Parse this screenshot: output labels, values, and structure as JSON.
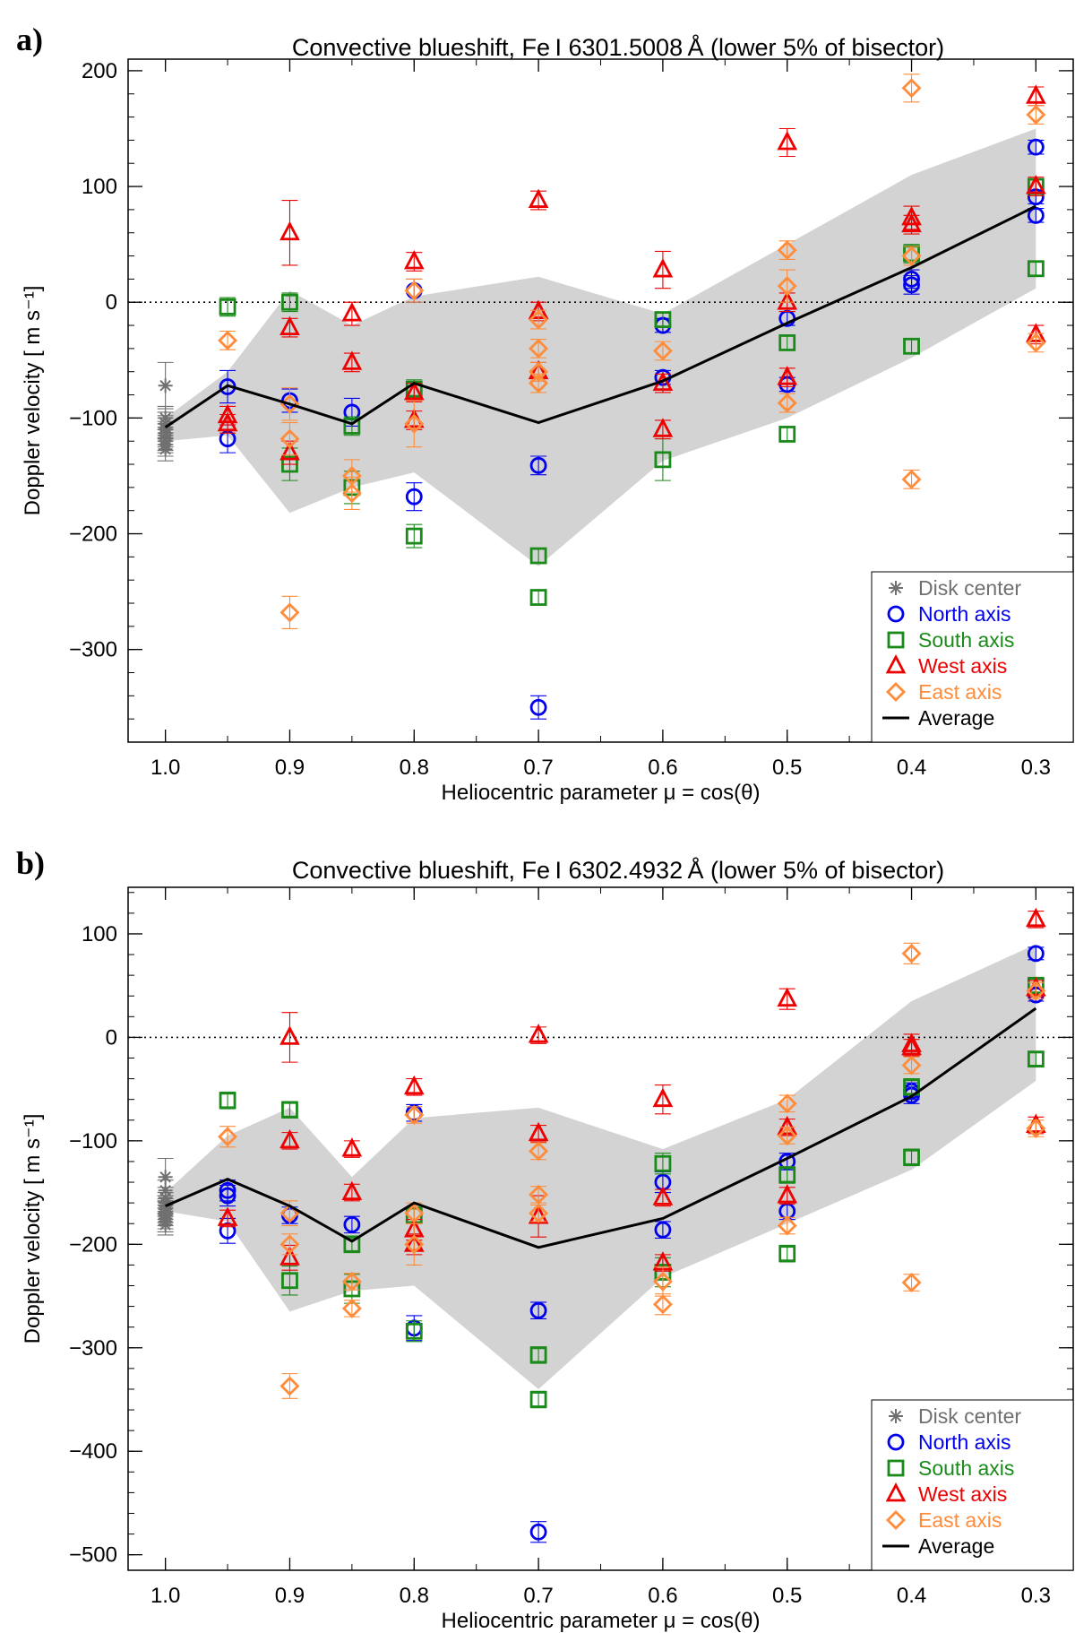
{
  "chart_data": [
    {
      "panel": "a)",
      "type": "scatter",
      "title": "Convective blueshift, Fe I 6301.5008 Å (lower 5% of bisector)",
      "xlabel": "Heliocentric parameter μ = cos(θ)",
      "ylabel": "Doppler velocity [ m s⁻¹]",
      "xlim": [
        1.03,
        0.27
      ],
      "ylim": [
        -380,
        210
      ],
      "xticks": [
        1.0,
        0.9,
        0.8,
        0.7,
        0.6,
        0.5,
        0.4,
        0.3
      ],
      "xtick_labels": [
        "1.0",
        "0.9",
        "0.8",
        "0.7",
        "0.6",
        "0.5",
        "0.4",
        "0.3"
      ],
      "yticks": [
        200,
        100,
        0,
        -100,
        -200,
        -300
      ],
      "ytick_labels": [
        "200",
        "100",
        "0",
        "−100",
        "−200",
        "−300"
      ],
      "zero_line": true,
      "legend_position": "bottom-right",
      "band": {
        "x": [
          1.0,
          0.95,
          0.9,
          0.85,
          0.8,
          0.7,
          0.6,
          0.5,
          0.4,
          0.3
        ],
        "upper": [
          -100,
          -60,
          10,
          -20,
          5,
          22,
          -10,
          50,
          110,
          150
        ],
        "lower": [
          -120,
          -115,
          -182,
          -160,
          -147,
          -228,
          -137,
          -100,
          -48,
          12
        ]
      },
      "series": [
        {
          "name": "Disk center",
          "marker": "asterisk",
          "color": "#707070",
          "x": [
            1.0,
            1.0,
            1.0,
            1.0,
            1.0,
            1.0,
            1.0,
            1.0,
            1.0,
            1.0,
            1.0
          ],
          "y": [
            -72,
            -100,
            -105,
            -108,
            -110,
            -113,
            -115,
            -118,
            -120,
            -123,
            -127
          ],
          "err": [
            20,
            10,
            10,
            10,
            10,
            10,
            10,
            10,
            10,
            10,
            10
          ]
        },
        {
          "name": "North axis",
          "marker": "circle",
          "color": "#0000ee",
          "x": [
            0.95,
            0.95,
            0.9,
            0.85,
            0.8,
            0.8,
            0.7,
            0.7,
            0.6,
            0.6,
            0.5,
            0.5,
            0.4,
            0.4,
            0.3,
            0.3,
            0.3
          ],
          "y": [
            -73,
            -118,
            -85,
            -95,
            10,
            -168,
            -141,
            -350,
            -20,
            -65,
            -14,
            -71,
            20,
            15,
            134,
            91,
            75
          ],
          "err": [
            14,
            12,
            10,
            12,
            10,
            12,
            8,
            10,
            6,
            6,
            6,
            6,
            8,
            8,
            6,
            6,
            6
          ]
        },
        {
          "name": "South axis",
          "marker": "square",
          "color": "#1a8a1a",
          "x": [
            0.95,
            0.9,
            0.9,
            0.85,
            0.85,
            0.8,
            0.8,
            0.7,
            0.7,
            0.6,
            0.6,
            0.5,
            0.5,
            0.4,
            0.4,
            0.3,
            0.3
          ],
          "y": [
            -4,
            0,
            -140,
            -107,
            -160,
            -75,
            -202,
            -219,
            -255,
            -15,
            -136,
            -35,
            -114,
            42,
            -38,
            100,
            29
          ],
          "err": [
            8,
            8,
            14,
            8,
            14,
            8,
            10,
            6,
            6,
            6,
            18,
            6,
            6,
            8,
            6,
            6,
            6
          ]
        },
        {
          "name": "West axis",
          "marker": "triangle",
          "color": "#ee0000",
          "x": [
            0.95,
            0.95,
            0.9,
            0.9,
            0.9,
            0.85,
            0.85,
            0.8,
            0.8,
            0.8,
            0.7,
            0.7,
            0.7,
            0.6,
            0.6,
            0.6,
            0.5,
            0.5,
            0.5,
            0.4,
            0.4,
            0.3,
            0.3,
            0.3
          ],
          "y": [
            -98,
            -105,
            60,
            -22,
            -130,
            -10,
            -52,
            35,
            -78,
            -102,
            88,
            -8,
            -60,
            28,
            -70,
            -110,
            138,
            0,
            -65,
            73,
            67,
            178,
            100,
            -28
          ],
          "err": [
            8,
            8,
            28,
            8,
            10,
            10,
            8,
            8,
            8,
            8,
            8,
            8,
            8,
            16,
            8,
            8,
            12,
            8,
            8,
            10,
            8,
            8,
            8,
            8
          ]
        },
        {
          "name": "East axis",
          "marker": "diamond",
          "color": "#ff8c3a",
          "x": [
            0.95,
            0.9,
            0.9,
            0.9,
            0.85,
            0.85,
            0.8,
            0.8,
            0.7,
            0.7,
            0.7,
            0.7,
            0.6,
            0.5,
            0.5,
            0.5,
            0.4,
            0.4,
            0.4,
            0.3,
            0.3
          ],
          "y": [
            -33,
            -118,
            -268,
            -88,
            -150,
            -165,
            10,
            -105,
            -15,
            -40,
            -60,
            -70,
            -42,
            45,
            14,
            -87,
            185,
            40,
            -153,
            162,
            -35
          ],
          "err": [
            8,
            14,
            14,
            14,
            14,
            14,
            10,
            20,
            8,
            8,
            8,
            8,
            8,
            8,
            14,
            8,
            12,
            8,
            8,
            8,
            8
          ]
        }
      ],
      "average": {
        "name": "Average",
        "x": [
          1.0,
          0.95,
          0.9,
          0.85,
          0.8,
          0.7,
          0.6,
          0.5,
          0.4,
          0.3
        ],
        "y": [
          -108,
          -72,
          -88,
          -105,
          -70,
          -104,
          -68,
          -18,
          30,
          83
        ]
      }
    },
    {
      "panel": "b)",
      "type": "scatter",
      "title": "Convective blueshift, Fe I 6302.4932 Å (lower 5% of bisector)",
      "xlabel": "Heliocentric parameter μ = cos(θ)",
      "ylabel": "Doppler velocity [ m s⁻¹]",
      "xlim": [
        1.03,
        0.27
      ],
      "ylim": [
        -515,
        145
      ],
      "xticks": [
        1.0,
        0.9,
        0.8,
        0.7,
        0.6,
        0.5,
        0.4,
        0.3
      ],
      "xtick_labels": [
        "1.0",
        "0.9",
        "0.8",
        "0.7",
        "0.6",
        "0.5",
        "0.4",
        "0.3"
      ],
      "yticks": [
        100,
        0,
        -100,
        -200,
        -300,
        -400,
        -500
      ],
      "ytick_labels": [
        "100",
        "0",
        "−100",
        "−200",
        "−300",
        "−400",
        "−500"
      ],
      "zero_line": true,
      "legend_position": "bottom-right",
      "band": {
        "x": [
          1.0,
          0.95,
          0.9,
          0.85,
          0.8,
          0.7,
          0.6,
          0.5,
          0.4,
          0.3
        ],
        "upper": [
          -150,
          -95,
          -68,
          -135,
          -78,
          -68,
          -108,
          -60,
          35,
          90
        ],
        "lower": [
          -168,
          -178,
          -265,
          -245,
          -240,
          -340,
          -232,
          -180,
          -128,
          -42
        ]
      },
      "series": [
        {
          "name": "Disk center",
          "marker": "asterisk",
          "color": "#707070",
          "x": [
            1.0,
            1.0,
            1.0,
            1.0,
            1.0,
            1.0,
            1.0,
            1.0,
            1.0,
            1.0,
            1.0
          ],
          "y": [
            -135,
            -148,
            -155,
            -160,
            -163,
            -166,
            -169,
            -172,
            -175,
            -178,
            -181
          ],
          "err": [
            18,
            10,
            10,
            10,
            10,
            10,
            10,
            10,
            10,
            10,
            10
          ]
        },
        {
          "name": "North axis",
          "marker": "circle",
          "color": "#0000ee",
          "x": [
            0.95,
            0.95,
            0.95,
            0.9,
            0.85,
            0.8,
            0.8,
            0.7,
            0.7,
            0.6,
            0.6,
            0.5,
            0.5,
            0.4,
            0.4,
            0.3,
            0.3
          ],
          "y": [
            -148,
            -153,
            -187,
            -172,
            -181,
            -73,
            -281,
            -264,
            -478,
            -140,
            -186,
            -120,
            -168,
            -52,
            -56,
            81,
            41
          ],
          "err": [
            10,
            10,
            12,
            8,
            8,
            8,
            12,
            8,
            10,
            10,
            8,
            8,
            8,
            8,
            8,
            6,
            6
          ]
        },
        {
          "name": "South axis",
          "marker": "square",
          "color": "#1a8a1a",
          "x": [
            0.95,
            0.9,
            0.9,
            0.85,
            0.85,
            0.8,
            0.8,
            0.7,
            0.7,
            0.6,
            0.6,
            0.5,
            0.5,
            0.4,
            0.4,
            0.3,
            0.3
          ],
          "y": [
            -61,
            -70,
            -235,
            -200,
            -243,
            -172,
            -284,
            -307,
            -350,
            -122,
            -227,
            -133,
            -209,
            -48,
            -116,
            50,
            -21
          ],
          "err": [
            8,
            8,
            14,
            8,
            14,
            8,
            10,
            8,
            8,
            10,
            14,
            8,
            8,
            8,
            8,
            8,
            6
          ]
        },
        {
          "name": "West axis",
          "marker": "triangle",
          "color": "#ee0000",
          "x": [
            0.95,
            0.9,
            0.9,
            0.9,
            0.85,
            0.85,
            0.8,
            0.8,
            0.8,
            0.7,
            0.7,
            0.7,
            0.6,
            0.6,
            0.6,
            0.5,
            0.5,
            0.5,
            0.4,
            0.4,
            0.3,
            0.3,
            0.3
          ],
          "y": [
            -175,
            0,
            -100,
            -213,
            -108,
            -150,
            -48,
            -186,
            -200,
            2,
            -93,
            -173,
            -60,
            -155,
            -218,
            37,
            -87,
            -153,
            -7,
            -10,
            114,
            47,
            -85
          ],
          "err": [
            8,
            24,
            8,
            12,
            8,
            8,
            8,
            10,
            10,
            8,
            8,
            20,
            14,
            8,
            8,
            10,
            8,
            8,
            10,
            8,
            8,
            8,
            8
          ]
        },
        {
          "name": "East axis",
          "marker": "diamond",
          "color": "#ff8c3a",
          "x": [
            0.95,
            0.9,
            0.9,
            0.9,
            0.85,
            0.85,
            0.8,
            0.8,
            0.8,
            0.7,
            0.7,
            0.7,
            0.6,
            0.6,
            0.5,
            0.5,
            0.5,
            0.4,
            0.4,
            0.4,
            0.3,
            0.3
          ],
          "y": [
            -96,
            -200,
            -170,
            -337,
            -262,
            -236,
            -75,
            -200,
            -170,
            -110,
            -152,
            -170,
            -236,
            -258,
            -64,
            -95,
            -182,
            81,
            -27,
            -237,
            45,
            -88
          ],
          "err": [
            10,
            10,
            12,
            12,
            8,
            8,
            8,
            20,
            10,
            8,
            8,
            8,
            14,
            10,
            8,
            8,
            8,
            10,
            8,
            8,
            8,
            8
          ]
        }
      ],
      "average": {
        "name": "Average",
        "x": [
          1.0,
          0.95,
          0.9,
          0.85,
          0.8,
          0.7,
          0.6,
          0.5,
          0.4,
          0.3
        ],
        "y": [
          -163,
          -137,
          -163,
          -197,
          -160,
          -203,
          -175,
          -117,
          -57,
          28
        ]
      }
    }
  ]
}
